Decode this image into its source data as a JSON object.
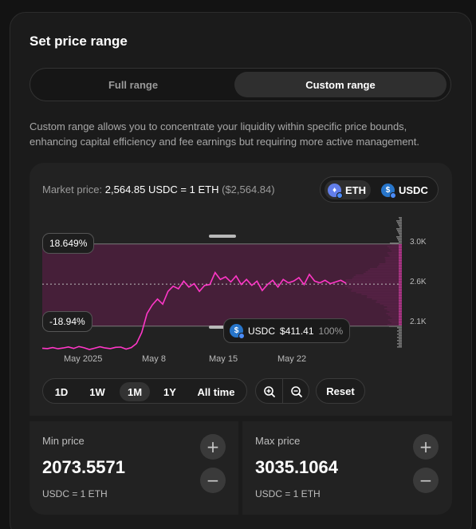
{
  "title": "Set price range",
  "range_toggle": {
    "full": "Full range",
    "custom": "Custom range"
  },
  "description": "Custom range allows you to concentrate your liquidity within specific price bounds, enhancing capital efficiency and fee earnings but requiring more active management.",
  "market": {
    "label": "Market price:",
    "value": "2,564.85 USDC = 1 ETH",
    "usd": "($2,564.84)"
  },
  "tokens": {
    "base": "ETH",
    "quote": "USDC"
  },
  "range_labels": {
    "upper": "18.649%",
    "lower": "-18.94%"
  },
  "tooltip": {
    "token": "USDC",
    "amount": "$411.41",
    "share": "100%"
  },
  "chart_data": {
    "type": "line",
    "x_ticks": [
      "May 2025",
      "May 8",
      "May 15",
      "May 22"
    ],
    "y_ticks": [
      "3.0K",
      "2.6K",
      "2.1K"
    ],
    "ylim": [
      1800,
      3350
    ],
    "price_series": [
      {
        "x": 0,
        "y": 1815
      },
      {
        "x": 1,
        "y": 1810
      },
      {
        "x": 2,
        "y": 1822
      },
      {
        "x": 3,
        "y": 1808
      },
      {
        "x": 4,
        "y": 1818
      },
      {
        "x": 5,
        "y": 1830
      },
      {
        "x": 6,
        "y": 1812
      },
      {
        "x": 7,
        "y": 1835
      },
      {
        "x": 8,
        "y": 1820
      },
      {
        "x": 9,
        "y": 1800
      },
      {
        "x": 10,
        "y": 1815
      },
      {
        "x": 11,
        "y": 1832
      },
      {
        "x": 12,
        "y": 1818
      },
      {
        "x": 13,
        "y": 1810
      },
      {
        "x": 14,
        "y": 1825
      },
      {
        "x": 15,
        "y": 1828
      },
      {
        "x": 16,
        "y": 1805
      },
      {
        "x": 17,
        "y": 1822
      },
      {
        "x": 18,
        "y": 1870
      },
      {
        "x": 19,
        "y": 2000
      },
      {
        "x": 20,
        "y": 2220
      },
      {
        "x": 21,
        "y": 2320
      },
      {
        "x": 22,
        "y": 2390
      },
      {
        "x": 23,
        "y": 2330
      },
      {
        "x": 24,
        "y": 2480
      },
      {
        "x": 25,
        "y": 2540
      },
      {
        "x": 26,
        "y": 2510
      },
      {
        "x": 27,
        "y": 2600
      },
      {
        "x": 28,
        "y": 2530
      },
      {
        "x": 29,
        "y": 2570
      },
      {
        "x": 30,
        "y": 2480
      },
      {
        "x": 31,
        "y": 2550
      },
      {
        "x": 32,
        "y": 2560
      },
      {
        "x": 33,
        "y": 2700
      },
      {
        "x": 34,
        "y": 2620
      },
      {
        "x": 35,
        "y": 2650
      },
      {
        "x": 36,
        "y": 2590
      },
      {
        "x": 37,
        "y": 2660
      },
      {
        "x": 38,
        "y": 2560
      },
      {
        "x": 39,
        "y": 2620
      },
      {
        "x": 40,
        "y": 2550
      },
      {
        "x": 41,
        "y": 2600
      },
      {
        "x": 42,
        "y": 2490
      },
      {
        "x": 43,
        "y": 2560
      },
      {
        "x": 44,
        "y": 2610
      },
      {
        "x": 45,
        "y": 2530
      },
      {
        "x": 46,
        "y": 2620
      },
      {
        "x": 47,
        "y": 2580
      },
      {
        "x": 48,
        "y": 2600
      },
      {
        "x": 49,
        "y": 2640
      },
      {
        "x": 50,
        "y": 2560
      },
      {
        "x": 51,
        "y": 2680
      },
      {
        "x": 52,
        "y": 2600
      },
      {
        "x": 53,
        "y": 2580
      },
      {
        "x": 54,
        "y": 2610
      },
      {
        "x": 55,
        "y": 2570
      },
      {
        "x": 56,
        "y": 2590
      },
      {
        "x": 57,
        "y": 2610
      },
      {
        "x": 58,
        "y": 2575
      }
    ],
    "range": {
      "min": 2073.5571,
      "max": 3035.1064,
      "current": 2564.85
    }
  },
  "timeframes": [
    "1D",
    "1W",
    "1M",
    "1Y",
    "All time"
  ],
  "timeframe_selected": "1M",
  "reset_label": "Reset",
  "min_price": {
    "label": "Min price",
    "value": "2073.5571",
    "unit": "USDC = 1 ETH"
  },
  "max_price": {
    "label": "Max price",
    "value": "3035.1064",
    "unit": "USDC = 1 ETH"
  },
  "colors": {
    "accent": "#ff37c7",
    "range_fill": "#4a1f3c",
    "liquidity": "#d63aa5"
  },
  "icons": {
    "zoom_in": "zoom-in-icon",
    "zoom_out": "zoom-out-icon",
    "plus": "plus-icon",
    "minus": "minus-icon"
  }
}
